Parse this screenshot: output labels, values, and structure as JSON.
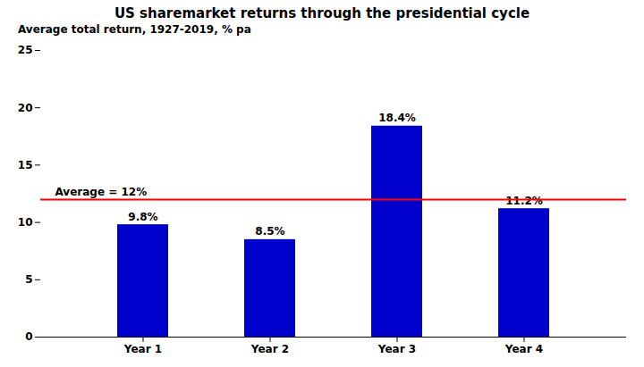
{
  "chart_data": {
    "type": "bar",
    "title": "US sharemarket returns through the presidential cycle",
    "subtitle": "Average total return, 1927-2019, % pa",
    "categories": [
      "Year 1",
      "Year 2",
      "Year 3",
      "Year 4"
    ],
    "values": [
      9.8,
      8.5,
      18.4,
      11.2
    ],
    "value_labels": [
      "9.8%",
      "8.5%",
      "18.4%",
      "11.2%"
    ],
    "data_labels": true,
    "color": "#0000CC",
    "ylim": [
      0,
      25
    ],
    "yticks": [
      0,
      5,
      10,
      15,
      20,
      25
    ],
    "grid": false,
    "reference_line": {
      "value": 12,
      "label": "Average = 12%",
      "color": "#FF0000"
    }
  }
}
